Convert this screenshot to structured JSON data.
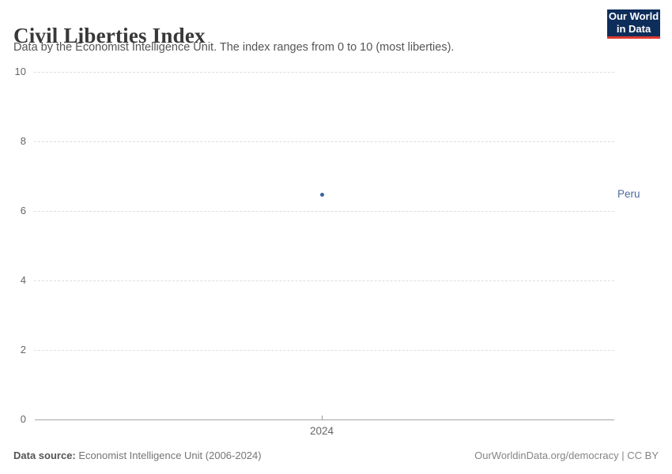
{
  "header": {
    "title": "Civil Liberties Index",
    "subtitle": "Data by the Economist Intelligence Unit. The index ranges from 0 to 10 (most liberties).",
    "logo": {
      "line1": "Our World",
      "line2": "in Data",
      "bg_color": "#0d2d5a",
      "accent_color": "#dc3a30",
      "text_color": "#ffffff"
    }
  },
  "chart_data": {
    "type": "scatter",
    "title": "Civil Liberties Index",
    "subtitle": "Data by the Economist Intelligence Unit. The index ranges from 0 to 10 (most liberties).",
    "series": [
      {
        "name": "Peru",
        "color": "#3d649f",
        "label_color": "#4c6a9c",
        "points": [
          {
            "x": 2024,
            "y": 6.47
          }
        ]
      }
    ],
    "x_axis": {
      "tick_labels": [
        "2024"
      ]
    },
    "y_axis": {
      "min": 0,
      "max": 10,
      "ticks": [
        0,
        2,
        4,
        6,
        8,
        10
      ]
    },
    "grid": {
      "style": "dashed",
      "color": "#dddddd"
    },
    "legend_position": "entity-label-right-of-plot"
  },
  "footer": {
    "datasource_label": "Data source:",
    "datasource_value": " Economist Intelligence Unit (2006-2024)",
    "attribution": "OurWorldinData.org/democracy | CC BY"
  }
}
